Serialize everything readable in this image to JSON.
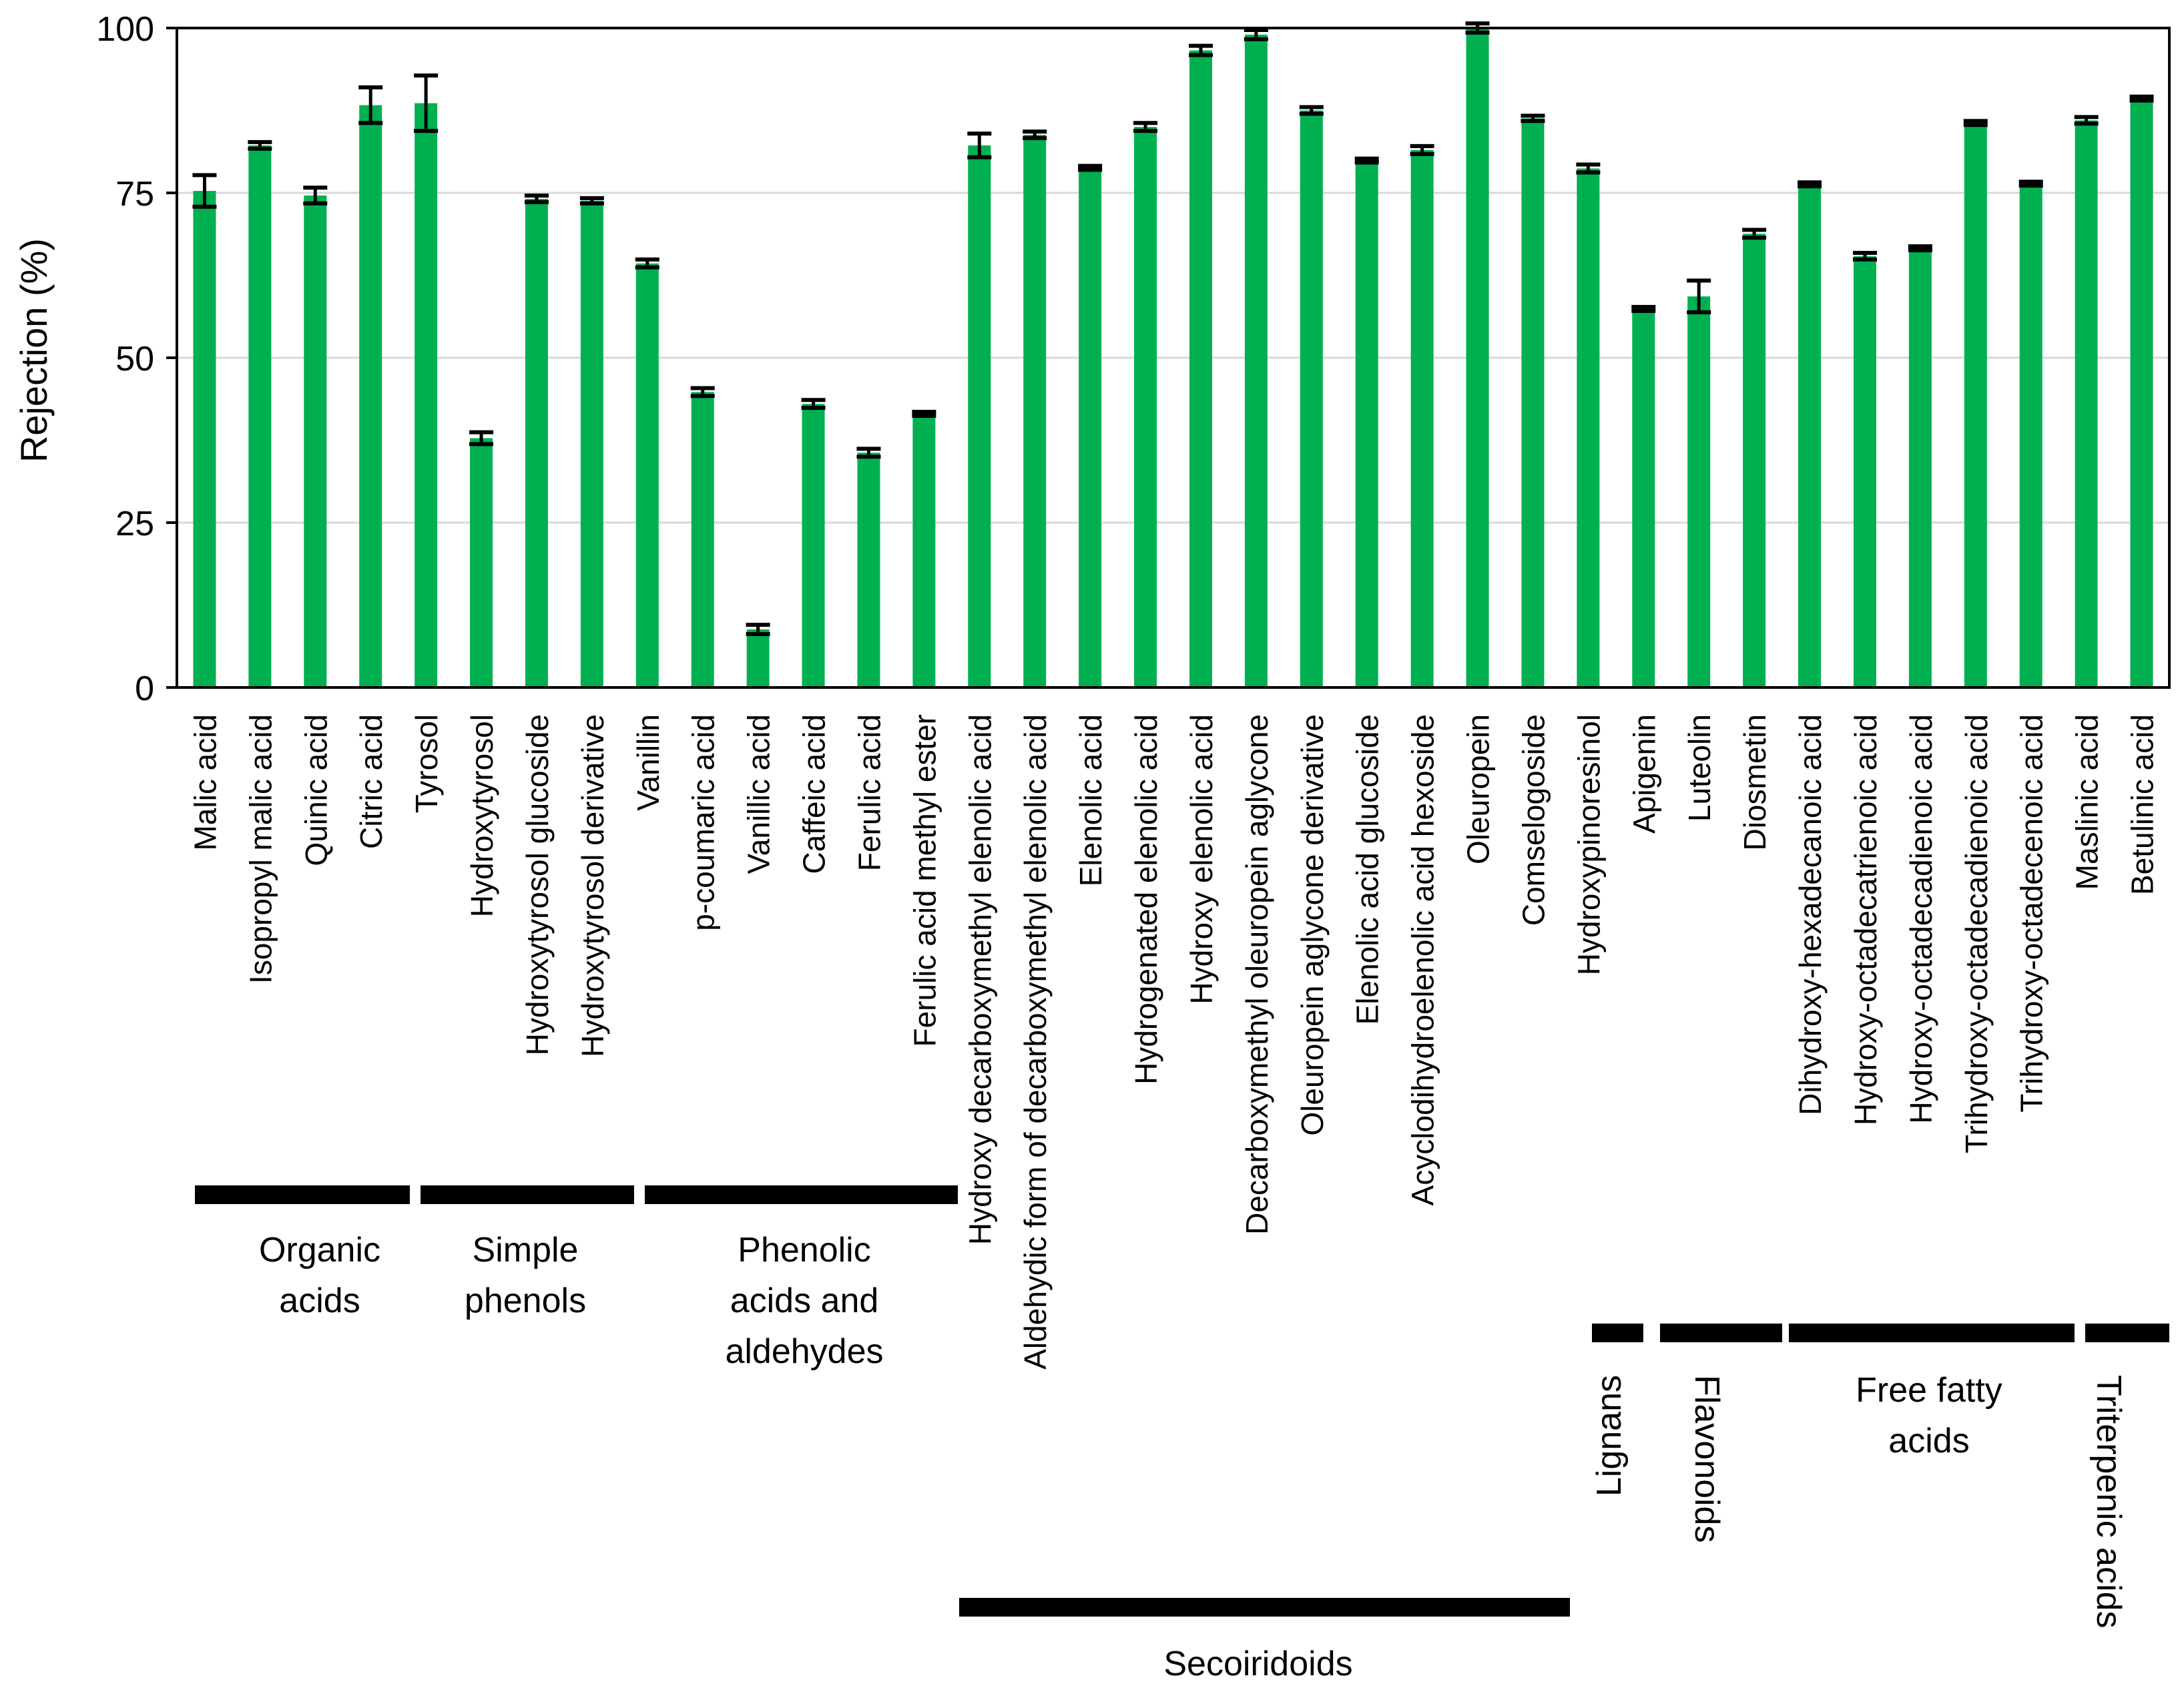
{
  "chart_data": {
    "type": "bar",
    "title": "",
    "xlabel": "",
    "ylabel": "Rejection (%)",
    "ylim": [
      0,
      100
    ],
    "yticks": [
      0,
      25,
      50,
      75,
      100
    ],
    "grid": true,
    "legend": "none",
    "categories": [
      "Malic acid",
      "Isopropyl malic acid",
      "Quinic acid",
      "Citric acid",
      "Tyrosol",
      "Hydroxytyrosol",
      "Hydroxytyrosol glucoside",
      "Hydroxytyrosol derivative",
      "Vanillin",
      "p-coumaric acid",
      "Vanillic acid",
      "Caffeic acid",
      "Ferulic acid",
      "Ferulic acid methyl ester",
      "Hydroxy decarboxymethyl elenolic acid",
      "Aldehydic form of decarboxymethyl elenolic acid",
      "Elenolic acid",
      "Hydrogenated elenolic acid",
      "Hydroxy elenolic acid",
      "Decarboxymethyl oleuropein aglycone",
      "Oleuropein aglycone derivative",
      "Elenolic acid glucoside",
      "Acyclodihydroelenolic acid hexoside",
      "Oleuropein",
      "Comselogoside",
      "Hydroxypinoresinol",
      "Apigenin",
      "Luteolin",
      "Diosmetin",
      "Dihydroxy-hexadecanoic acid",
      "Hydroxy-octadecatrienoic acid",
      "Hydroxy-octadecadienoic acid",
      "Trihydroxy-octadecadienoic acid",
      "Trihydroxy-octadecenoic acid",
      "Maslinic acid",
      "Betulinic acid"
    ],
    "series": [
      {
        "name": "Rejection",
        "color": "#00B050",
        "values": [
          75.3,
          82.2,
          74.6,
          88.3,
          88.6,
          37.8,
          74.1,
          73.8,
          64.3,
          44.8,
          8.8,
          43.0,
          35.6,
          41.5,
          82.2,
          83.8,
          78.8,
          85.0,
          96.6,
          99.0,
          87.5,
          79.9,
          81.5,
          100.0,
          86.3,
          78.7,
          57.4,
          59.3,
          68.8,
          76.3,
          65.4,
          66.6,
          85.6,
          76.4,
          86.0,
          89.3
        ],
        "errors": [
          2.4,
          0.5,
          1.2,
          2.7,
          4.2,
          0.9,
          0.5,
          0.4,
          0.6,
          0.6,
          0.7,
          0.6,
          0.6,
          0.3,
          1.8,
          0.5,
          0.3,
          0.6,
          0.7,
          0.7,
          0.5,
          0.3,
          0.6,
          0.7,
          0.4,
          0.6,
          0.3,
          2.4,
          0.6,
          0.3,
          0.5,
          0.3,
          0.3,
          0.3,
          0.5,
          0.3
        ]
      }
    ],
    "groups": [
      {
        "label_lines": [
          "Organic",
          "acids"
        ],
        "start": 0,
        "end": 3
      },
      {
        "label_lines": [
          "Simple",
          "phenols"
        ],
        "start": 4,
        "end": 7
      },
      {
        "label_lines": [
          "Phenolic",
          "acids and",
          "aldehydes"
        ],
        "start": 8,
        "end": 13
      },
      {
        "label_lines": [
          "Secoiridoids"
        ],
        "start": 14,
        "end": 24
      },
      {
        "label_lines": [
          "Lignans"
        ],
        "start": 25,
        "end": 25
      },
      {
        "label_lines": [
          "Flavonoids"
        ],
        "start": 26,
        "end": 28
      },
      {
        "label_lines": [
          "Free fatty",
          "acids"
        ],
        "start": 29,
        "end": 33
      },
      {
        "label_lines": [
          "Triterpenic acids"
        ],
        "start": 34,
        "end": 35
      }
    ]
  }
}
